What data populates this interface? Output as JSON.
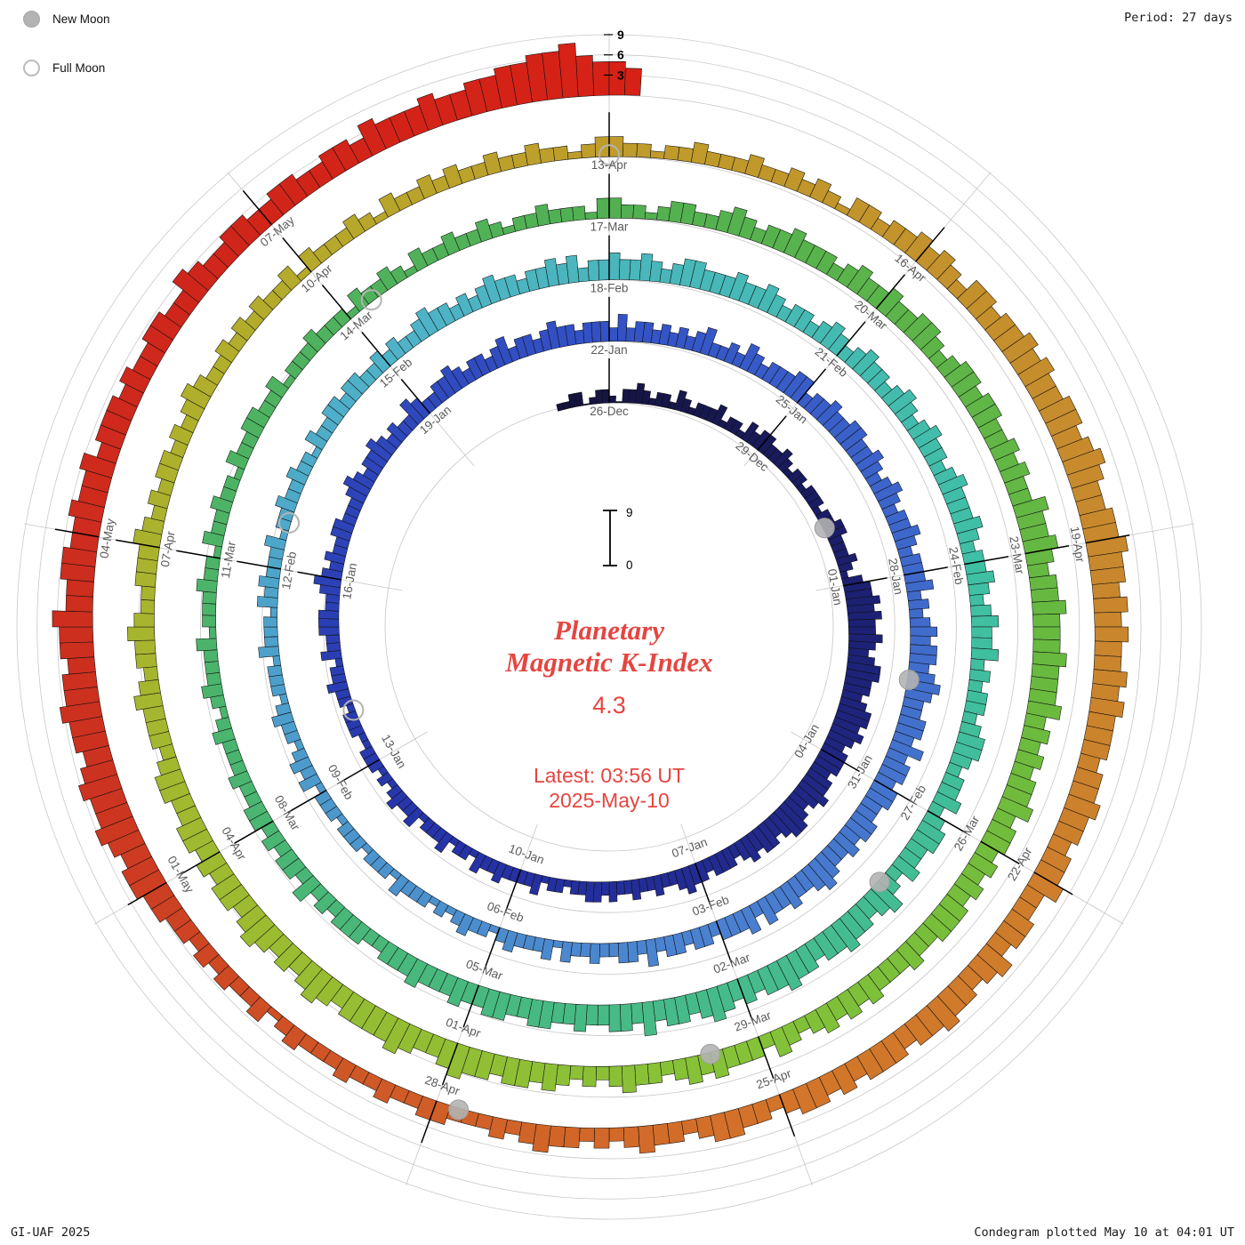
{
  "meta": {
    "period_label": "Period: 27 days",
    "credit": "GI-UAF 2025",
    "plotted": "Condegram plotted May 10 at 04:01 UT"
  },
  "legend": {
    "new_moon": "New Moon",
    "full_moon": "Full Moon"
  },
  "center": {
    "title_line1": "Planetary",
    "title_line2": "Magnetic K-Index",
    "current_value": "4.3",
    "latest_line1": "Latest: 03:56 UT",
    "latest_line2": "2025-May-10",
    "scale_top": "9",
    "scale_bottom": "0",
    "accent_color": "#e64540"
  },
  "axis": {
    "tick_labels": [
      "3",
      "6",
      "9"
    ]
  },
  "chart_data": {
    "type": "bar",
    "variant": "condegram-polar-spiral",
    "title": "Planetary Magnetic K-Index",
    "current_k": "4.3",
    "latest_time": "03:56 UT",
    "latest_date": "2025-May-10",
    "period_days": 27,
    "hours_per_bar": 3,
    "ylim": [
      0,
      9
    ],
    "start_date": "2024-12-25T00:00Z",
    "ref_date_label": "26-Dec",
    "legend_position": "top-left",
    "grid": true,
    "note": "k_values: one digit (Kp 0-9) per 3-hour bar, spiral clockwise from top, 27 days per turn",
    "k_values": [
      "1122012210",
      "2232122132",
      "1222312213",
      "2332232122",
      "1222122332",
      "2232134454",
      "5445434554",
      "4345545434",
      "4434454345",
      "5434434323",
      "3323343223",
      "2232232332",
      "2122132222",
      "3223122132",
      "2213223212",
      "1222112221",
      "2232213223",
      "3322343232",
      "2332223432",
      "3343232243",
      "2233432332",
      "3423323433",
      "2333242332",
      "3232342232",
      "4323334423",
      "3433443343",
      "2343233432",
      "3334232343",
      "4434543344",
      "3534434433",
      "4434334543",
      "3433424333",
      "2332332423",
      "3223223132",
      "2232122321",
      "2122231222",
      "1222122213",
      "2321223212",
      "2213222132",
      "3222312232",
      "2322132233",
      "2332232322",
      "3433232343",
      "3233434233",
      "4334323443",
      "3343343233",
      "2343234332",
      "3432343323",
      "4333432334",
      "3234334232",
      "3323443233",
      "4234433423",
      "5434454434",
      "4544343454",
      "3443534433",
      "4334433443",
      "3433343332",
      "2333232423",
      "3232332232",
      "2232123222",
      "3122232213",
      "2232213223",
      "3223122232",
      "2213223213",
      "2232232122",
      "3222133221",
      "2332234323",
      "3433323433",
      "4334432344",
      "3443343433",
      "5445434454",
      "4454445343",
      "4344534434",
      "3434443343",
      "3343434323",
      "4233343432",
      "3343232343",
      "4434454334",
      "5444434543",
      "4345434434",
      "3443344323",
      "3343233432",
      "2333432323",
      "3232343223",
      "2323223132",
      "2232132232",
      "3223223221",
      "2332212232",
      "2232232321",
      "3323343432",
      "4434454544",
      "5545654455",
      "6554545445",
      "4544434454",
      "4344533443",
      "5434454434",
      "4434344323",
      "3443233432",
      "3233432322",
      "2332232232",
      "2232132232",
      "3233445545",
      "6556545565",
      "5455644554",
      "4544534443",
      "4334433543",
      "3443344334",
      "4354445445",
      "5667786554"
    ],
    "date_labels": [
      {
        "label": "26-Dec",
        "d": 0
      },
      {
        "label": "29-Dec",
        "d": 3
      },
      {
        "label": "01-Jan",
        "d": 6
      },
      {
        "label": "04-Jan",
        "d": 9
      },
      {
        "label": "07-Jan",
        "d": 12
      },
      {
        "label": "10-Jan",
        "d": 15
      },
      {
        "label": "13-Jan",
        "d": 18
      },
      {
        "label": "16-Jan",
        "d": 21
      },
      {
        "label": "19-Jan",
        "d": 24
      },
      {
        "label": "22-Jan",
        "d": 27
      },
      {
        "label": "25-Jan",
        "d": 30
      },
      {
        "label": "28-Jan",
        "d": 33
      },
      {
        "label": "31-Jan",
        "d": 36
      },
      {
        "label": "03-Feb",
        "d": 39
      },
      {
        "label": "06-Feb",
        "d": 42
      },
      {
        "label": "09-Feb",
        "d": 45
      },
      {
        "label": "12-Feb",
        "d": 48
      },
      {
        "label": "15-Feb",
        "d": 51
      },
      {
        "label": "18-Feb",
        "d": 54
      },
      {
        "label": "21-Feb",
        "d": 57
      },
      {
        "label": "24-Feb",
        "d": 60
      },
      {
        "label": "27-Feb",
        "d": 63
      },
      {
        "label": "02-Mar",
        "d": 66
      },
      {
        "label": "05-Mar",
        "d": 69
      },
      {
        "label": "08-Mar",
        "d": 72
      },
      {
        "label": "11-Mar",
        "d": 75
      },
      {
        "label": "14-Mar",
        "d": 78
      },
      {
        "label": "17-Mar",
        "d": 81
      },
      {
        "label": "20-Mar",
        "d": 84
      },
      {
        "label": "23-Mar",
        "d": 87
      },
      {
        "label": "26-Mar",
        "d": 90
      },
      {
        "label": "29-Mar",
        "d": 93
      },
      {
        "label": "01-Apr",
        "d": 96
      },
      {
        "label": "04-Apr",
        "d": 99
      },
      {
        "label": "07-Apr",
        "d": 102
      },
      {
        "label": "10-Apr",
        "d": 105
      },
      {
        "label": "13-Apr",
        "d": 108
      },
      {
        "label": "16-Apr",
        "d": 111
      },
      {
        "label": "19-Apr",
        "d": 114
      },
      {
        "label": "22-Apr",
        "d": 117
      },
      {
        "label": "25-Apr",
        "d": 120
      },
      {
        "label": "28-Apr",
        "d": 123
      },
      {
        "label": "01-May",
        "d": 126
      },
      {
        "label": "04-May",
        "d": 129
      },
      {
        "label": "07-May",
        "d": 132
      }
    ],
    "moons": {
      "new": [
        {
          "date": "30-Dec",
          "d": 4.9
        },
        {
          "date": "29-Jan",
          "d": 34.5
        },
        {
          "date": "28-Feb",
          "d": 64.0
        },
        {
          "date": "29-Mar",
          "d": 93.5
        },
        {
          "date": "27-Apr",
          "d": 122.8
        }
      ],
      "full": [
        {
          "date": "13-Jan",
          "d": 18.9
        },
        {
          "date": "12-Feb",
          "d": 48.6
        },
        {
          "date": "14-Mar",
          "d": 78.3
        },
        {
          "date": "13-Apr",
          "d": 108.0
        }
      ]
    },
    "color_stops": [
      [
        -1,
        "#14123c"
      ],
      [
        6,
        "#1c2070"
      ],
      [
        16,
        "#2633a8"
      ],
      [
        27,
        "#3352c6"
      ],
      [
        39,
        "#4a80d0"
      ],
      [
        51,
        "#4fb2c8"
      ],
      [
        60,
        "#3fbfa4"
      ],
      [
        66,
        "#46bb8b"
      ],
      [
        74,
        "#4bb46a"
      ],
      [
        81,
        "#52b052"
      ],
      [
        88,
        "#68b93f"
      ],
      [
        93,
        "#84c238"
      ],
      [
        99,
        "#9fba30"
      ],
      [
        104,
        "#b2ad2b"
      ],
      [
        108,
        "#bf9c2b"
      ],
      [
        114,
        "#c8882d"
      ],
      [
        120,
        "#d3742a"
      ],
      [
        124,
        "#cf5526"
      ],
      [
        127,
        "#cc3220"
      ],
      [
        131,
        "#cf261b"
      ],
      [
        136,
        "#d82015"
      ]
    ]
  }
}
